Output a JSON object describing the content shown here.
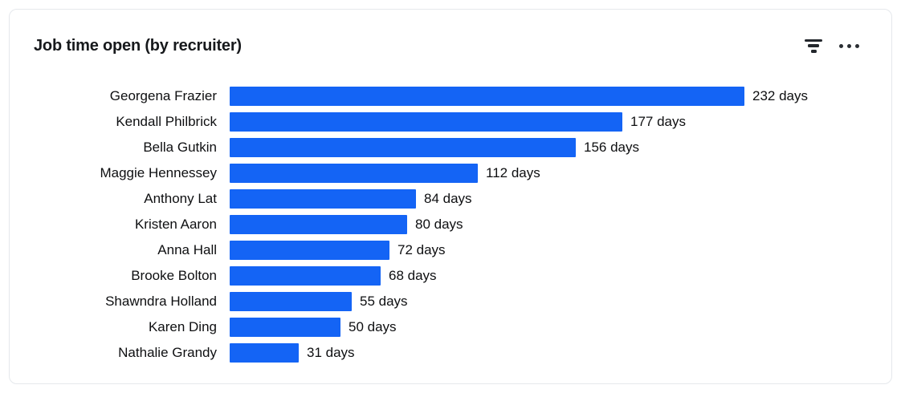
{
  "header": {
    "title": "Job time open (by recruiter)",
    "filter_icon": "filter-icon",
    "more_icon": "ellipsis-icon"
  },
  "chart_data": {
    "type": "bar",
    "orientation": "horizontal",
    "title": "Job time open (by recruiter)",
    "categories": [
      "Georgena Frazier",
      "Kendall Philbrick",
      "Bella Gutkin",
      "Maggie Hennessey",
      "Anthony Lat",
      "Kristen Aaron",
      "Anna Hall",
      "Brooke Bolton",
      "Shawndra Holland",
      "Karen Ding",
      "Nathalie Grandy"
    ],
    "values": [
      232,
      177,
      156,
      112,
      84,
      80,
      72,
      68,
      55,
      50,
      31
    ],
    "value_labels": [
      "232 days",
      "177 days",
      "156 days",
      "112 days",
      "84 days",
      "80 days",
      "72 days",
      "68 days",
      "55 days",
      "50 days",
      "31 days"
    ],
    "value_suffix": " days",
    "xlabel": "",
    "ylabel": "",
    "xlim": [
      0,
      232
    ],
    "grid": false,
    "legend": false,
    "bar_color": "#1464f5"
  },
  "colors": {
    "bar": "#1464f5",
    "card_border": "#e5e8ec",
    "text": "#0e0f11",
    "title": "#17191c",
    "icon": "#23272c",
    "background": "#ffffff"
  }
}
